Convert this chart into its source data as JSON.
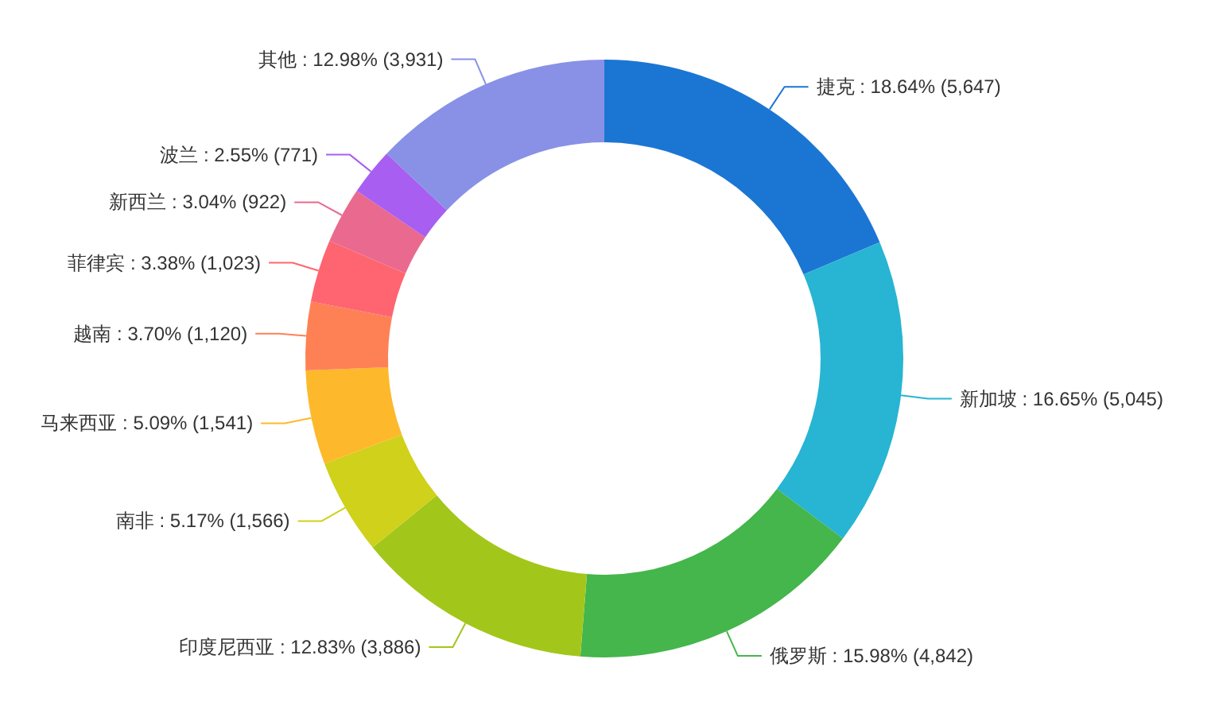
{
  "chart_data": {
    "type": "donut",
    "categories": [
      "捷克",
      "新加坡",
      "俄罗斯",
      "印度尼西亚",
      "南非",
      "马来西亚",
      "越南",
      "菲律宾",
      "新西兰",
      "波兰",
      "其他"
    ],
    "values": [
      5647,
      5045,
      4842,
      3886,
      1566,
      1541,
      1120,
      1023,
      922,
      771,
      3931
    ],
    "value_labels": [
      "18.64% (5,647)",
      "16.65% (5,045)",
      "15.98% (4,842)",
      "12.83% (3,886)",
      "5.17% (1,566)",
      "5.09% (1,541)",
      "3.70% (1,120)",
      "3.38% (1,023)",
      "3.04% (922)",
      "2.55% (771)",
      "12.98% (3,931)"
    ],
    "colors": [
      "#1b76d3",
      "#28b4d3",
      "#44b64b",
      "#a3c61b",
      "#cfd11a",
      "#fdb92b",
      "#fe8155",
      "#fe6570",
      "#e96a8e",
      "#a75ef1",
      "#8891e6"
    ]
  }
}
